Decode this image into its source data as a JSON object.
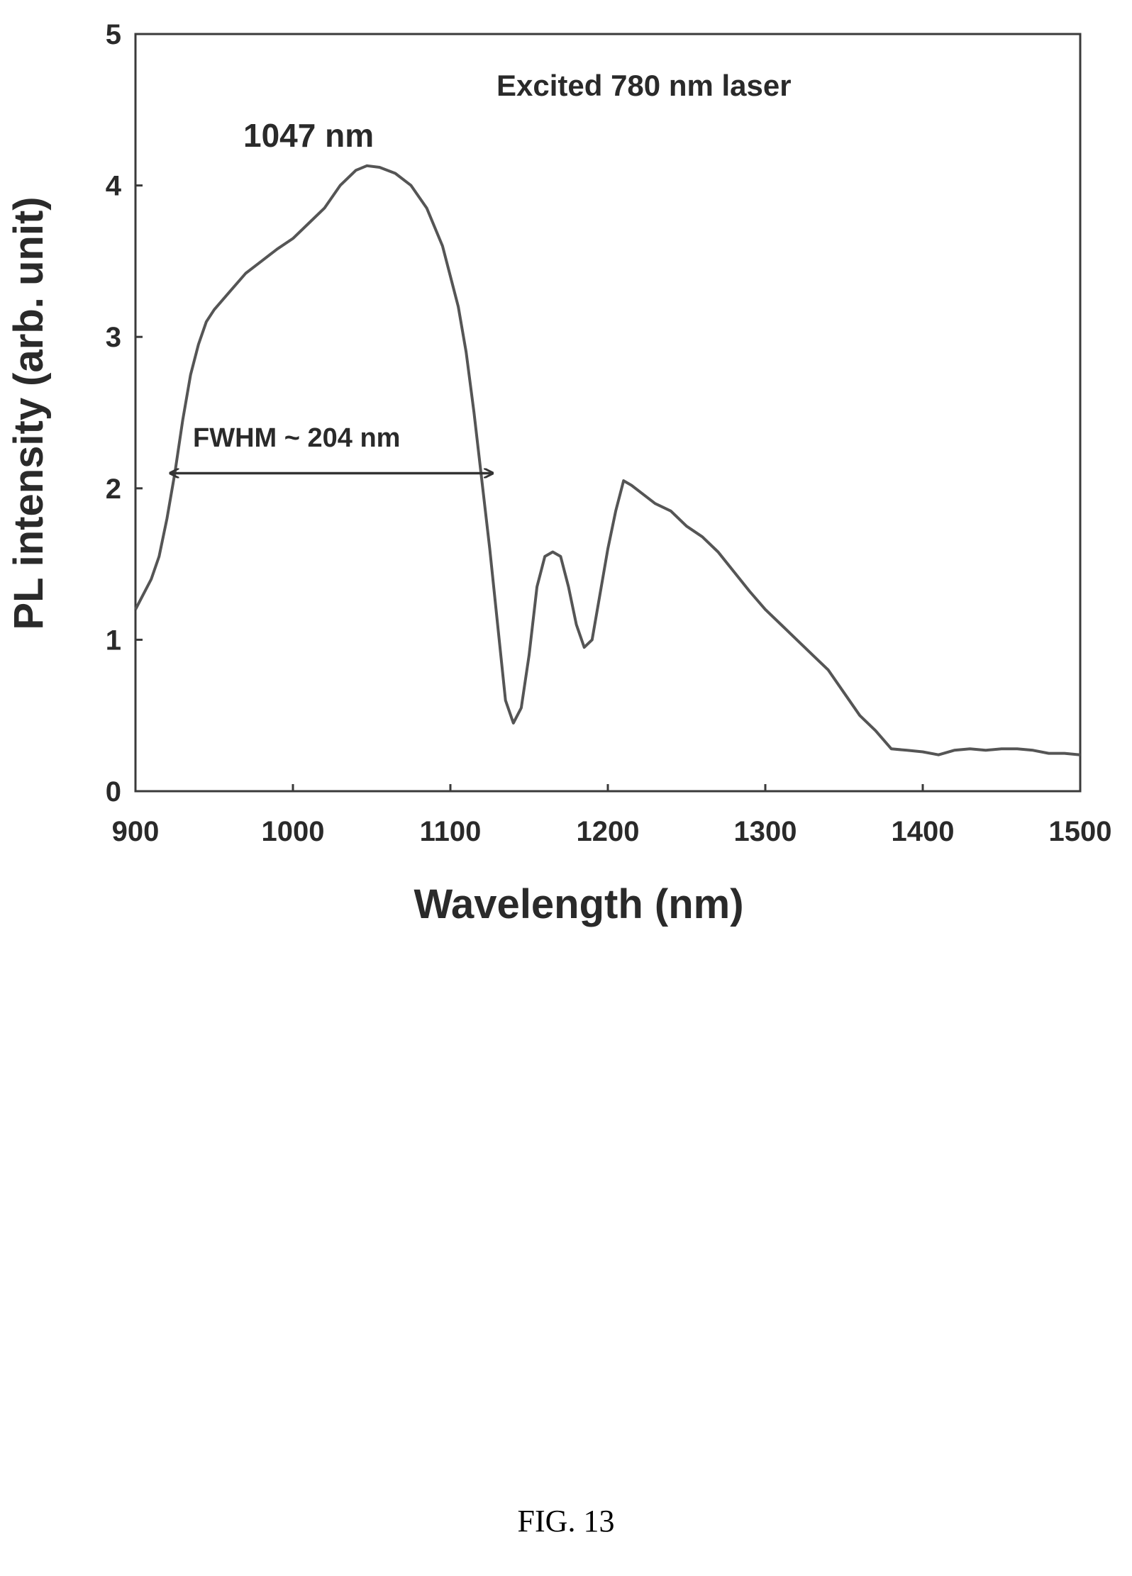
{
  "chart_data": {
    "type": "line",
    "title": "",
    "xlabel": "Wavelength (nm)",
    "ylabel": "PL intensity (arb. unit)",
    "xlim": [
      900,
      1500
    ],
    "ylim": [
      0,
      5
    ],
    "xticks": [
      "900",
      "1000",
      "1100",
      "1200",
      "1300",
      "1400",
      "1500"
    ],
    "yticks": [
      "0",
      "1",
      "2",
      "3",
      "4",
      "5"
    ],
    "grid": false,
    "legend": "none",
    "line_color": "#555555",
    "series": [
      {
        "x": [
          900,
          905,
          910,
          915,
          920,
          925,
          930,
          935,
          940,
          945,
          950,
          960,
          970,
          980,
          990,
          1000,
          1010,
          1020,
          1030,
          1040,
          1047,
          1055,
          1065,
          1075,
          1085,
          1095,
          1105,
          1110,
          1115,
          1120,
          1125,
          1130,
          1135,
          1140,
          1145,
          1150,
          1155,
          1160,
          1165,
          1170,
          1175,
          1180,
          1185,
          1190,
          1195,
          1200,
          1205,
          1210,
          1215,
          1220,
          1230,
          1240,
          1250,
          1260,
          1270,
          1280,
          1290,
          1300,
          1310,
          1320,
          1330,
          1340,
          1350,
          1360,
          1370,
          1380,
          1390,
          1400,
          1410,
          1420,
          1430,
          1440,
          1450,
          1460,
          1470,
          1480,
          1490,
          1500
        ],
        "y": [
          1.2,
          1.3,
          1.4,
          1.55,
          1.8,
          2.1,
          2.45,
          2.75,
          2.95,
          3.1,
          3.18,
          3.3,
          3.42,
          3.5,
          3.58,
          3.65,
          3.75,
          3.85,
          4.0,
          4.1,
          4.13,
          4.12,
          4.08,
          4.0,
          3.85,
          3.6,
          3.2,
          2.9,
          2.5,
          2.05,
          1.6,
          1.1,
          0.6,
          0.45,
          0.55,
          0.9,
          1.35,
          1.55,
          1.58,
          1.55,
          1.35,
          1.1,
          0.95,
          1.0,
          1.3,
          1.6,
          1.85,
          2.05,
          2.02,
          1.98,
          1.9,
          1.85,
          1.75,
          1.68,
          1.58,
          1.45,
          1.32,
          1.2,
          1.1,
          1.0,
          0.9,
          0.8,
          0.65,
          0.5,
          0.4,
          0.28,
          0.27,
          0.26,
          0.24,
          0.27,
          0.28,
          0.27,
          0.28,
          0.28,
          0.27,
          0.25,
          0.25,
          0.24
        ]
      }
    ],
    "annotations": {
      "peak_label": "1047 nm",
      "laser_label": "Excited 780 nm laser",
      "fwhm_label": "FWHM ~ 204 nm",
      "fwhm_start": 922,
      "fwhm_end": 1127,
      "fwhm_level": 2.1
    }
  },
  "caption": "FIG. 13"
}
